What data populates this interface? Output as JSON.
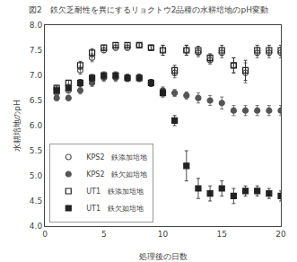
{
  "chart_data": {
    "type": "scatter",
    "title": "図2　鉄欠乏耐性を異にするリョクトウ2品種の水耕培地のpH変動",
    "x_label": "処理後の日数",
    "y_label": "水耕培地のpH",
    "xlim": [
      0,
      20
    ],
    "ylim": [
      4.0,
      8.0
    ],
    "xticks": [
      0,
      5,
      10,
      15,
      20
    ],
    "yticks": [
      {
        "value": 4.0,
        "label": "4.0"
      },
      4.5,
      {
        "value": 5.0,
        "label": "5.0"
      },
      5.5,
      {
        "value": 6.0,
        "label": "6.0"
      },
      6.5,
      {
        "value": 7.0,
        "label": "7.0"
      },
      7.5,
      {
        "value": 8.0,
        "label": "8.0"
      }
    ],
    "grid": false,
    "legend": "lower left",
    "series": [
      {
        "name": "KPS2　鉄添加培地",
        "color": "#555555",
        "marker": "circle-open",
        "x": [
          1,
          2,
          3,
          4,
          5,
          6,
          7,
          8,
          9,
          10,
          11,
          12,
          13,
          14,
          15,
          16,
          17,
          18,
          19,
          20
        ],
        "values": [
          6.65,
          6.7,
          7.1,
          7.35,
          7.5,
          7.55,
          7.55,
          7.6,
          7.55,
          7.5,
          7.05,
          7.5,
          7.45,
          7.3,
          7.45,
          7.2,
          7.05,
          7.45,
          7.45,
          7.45
        ],
        "yerr": [
          0.05,
          0.05,
          0.08,
          0.08,
          0.05,
          0.05,
          0.05,
          0.05,
          0.05,
          0.1,
          0.1,
          0.1,
          0.08,
          0.08,
          0.1,
          0.15,
          0.2,
          0.1,
          0.1,
          0.1
        ]
      },
      {
        "name": "KPS2　鉄欠如培地",
        "color": "#555555",
        "marker": "circle",
        "x": [
          1,
          2,
          3,
          4,
          5,
          6,
          7,
          8,
          9,
          10,
          11,
          12,
          13,
          14,
          15,
          16,
          17,
          18,
          19,
          20
        ],
        "values": [
          6.55,
          6.55,
          6.7,
          6.85,
          6.95,
          6.95,
          6.95,
          6.95,
          6.85,
          6.7,
          6.65,
          6.6,
          6.55,
          6.5,
          6.45,
          6.3,
          6.3,
          6.3,
          6.3,
          6.3
        ],
        "yerr": [
          0.05,
          0.05,
          0.07,
          0.07,
          0.07,
          0.07,
          0.07,
          0.07,
          0.07,
          0.07,
          0.07,
          0.07,
          0.1,
          0.1,
          0.12,
          0.1,
          0.1,
          0.1,
          0.1,
          0.1
        ]
      },
      {
        "name": "UT1　鉄添加培地",
        "color": "#222222",
        "marker": "square-open",
        "x": [
          1,
          2,
          3,
          4,
          5,
          6,
          7,
          8,
          9,
          10,
          11,
          12,
          13,
          14,
          15,
          16,
          17,
          18,
          19,
          20
        ],
        "values": [
          6.75,
          6.85,
          7.2,
          7.45,
          7.55,
          7.6,
          7.6,
          7.6,
          7.55,
          7.5,
          7.1,
          7.5,
          7.5,
          7.35,
          7.5,
          7.2,
          7.1,
          7.5,
          7.5,
          7.5
        ],
        "yerr": [
          0.05,
          0.05,
          0.08,
          0.08,
          0.05,
          0.05,
          0.05,
          0.05,
          0.05,
          0.1,
          0.1,
          0.1,
          0.08,
          0.08,
          0.1,
          0.15,
          0.2,
          0.1,
          0.1,
          0.1
        ]
      },
      {
        "name": "UT1　鉄欠如培地",
        "color": "#222222",
        "marker": "square",
        "x": [
          1,
          2,
          3,
          4,
          5,
          6,
          7,
          8,
          9,
          10,
          11,
          12,
          13,
          14,
          15,
          16,
          17,
          18,
          19,
          20
        ],
        "values": [
          6.7,
          6.75,
          6.85,
          6.95,
          7.0,
          7.0,
          6.95,
          6.95,
          6.85,
          6.65,
          6.1,
          5.2,
          4.75,
          4.65,
          4.75,
          4.6,
          4.7,
          4.7,
          4.65,
          4.6
        ],
        "yerr": [
          0.07,
          0.07,
          0.07,
          0.07,
          0.07,
          0.07,
          0.07,
          0.07,
          0.07,
          0.08,
          0.1,
          0.3,
          0.2,
          0.15,
          0.15,
          0.15,
          0.1,
          0.1,
          0.1,
          0.1
        ]
      }
    ]
  }
}
